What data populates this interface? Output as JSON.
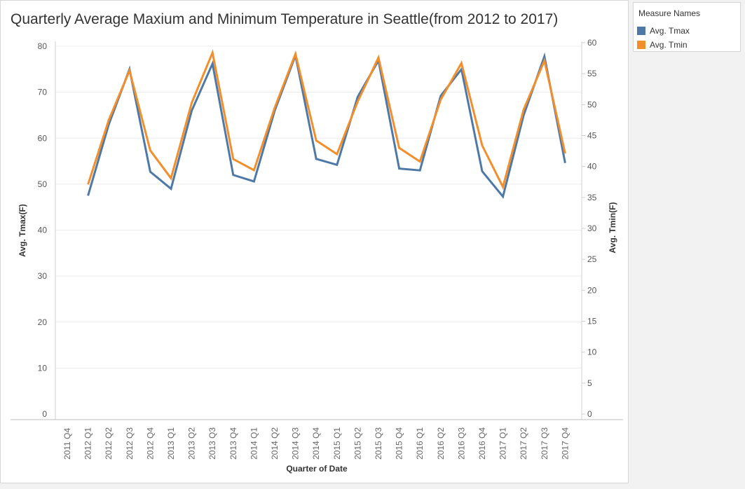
{
  "chart_data": {
    "type": "line",
    "title": "Quarterly Average Maxium and Minimum Temperature in Seattle(from 2012 to 2017)",
    "xlabel": "Quarter of Date",
    "ylabel_left": "Avg. Tmax(F)",
    "ylabel_right": "Avg. Tmin(F)",
    "categories": [
      "2011 Q4",
      "2012 Q1",
      "2012 Q2",
      "2012 Q3",
      "2012 Q4",
      "2013 Q1",
      "2013 Q2",
      "2013 Q3",
      "2013 Q4",
      "2014 Q1",
      "2014 Q2",
      "2014 Q3",
      "2014 Q4",
      "2015 Q1",
      "2015 Q2",
      "2015 Q3",
      "2015 Q4",
      "2016 Q1",
      "2016 Q2",
      "2016 Q3",
      "2016 Q4",
      "2017 Q1",
      "2017 Q2",
      "2017 Q3",
      "2017 Q4"
    ],
    "ylim_left": [
      0,
      80
    ],
    "ylim_right": [
      0,
      60
    ],
    "yticks_left": [
      0,
      10,
      20,
      30,
      40,
      50,
      60,
      70,
      80
    ],
    "yticks_right": [
      0,
      5,
      10,
      15,
      20,
      25,
      30,
      35,
      40,
      45,
      50,
      55,
      60
    ],
    "grid": true,
    "legend_title": "Measure Names",
    "legend_position": "top-right",
    "series": [
      {
        "name": "Avg. Tmax",
        "axis": "left",
        "color": "#4e79a7",
        "values": [
          47.5,
          63.0,
          75.0,
          52.7,
          49.0,
          66.0,
          76.2,
          52.0,
          50.6,
          66.0,
          78.0,
          55.5,
          54.2,
          69.0,
          76.9,
          53.4,
          53.0,
          69.2,
          75.0,
          52.8,
          47.3,
          65.0,
          77.8,
          54.6,
          null
        ]
      },
      {
        "name": "Avg. Tmin",
        "axis": "right",
        "color": "#f28e2b",
        "values": [
          37.1,
          47.5,
          55.5,
          42.6,
          38.1,
          50.3,
          58.4,
          41.2,
          39.4,
          49.5,
          58.2,
          44.2,
          42.0,
          50.5,
          57.6,
          43.0,
          40.8,
          50.8,
          56.7,
          43.4,
          36.7,
          49.2,
          57.1,
          42.1,
          null
        ]
      }
    ]
  }
}
